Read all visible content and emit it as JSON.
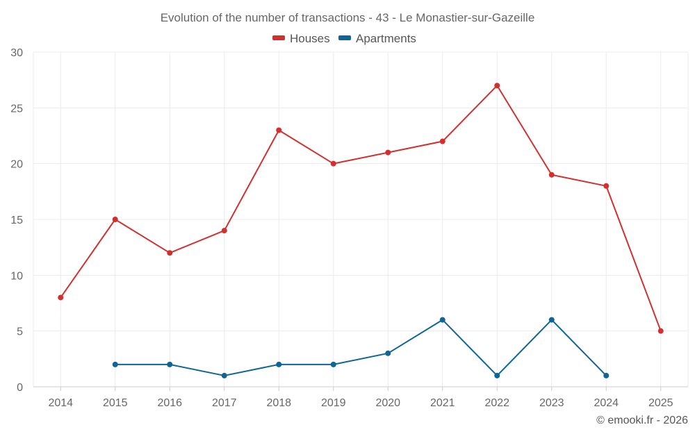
{
  "chart_data": {
    "type": "line",
    "title": "Evolution of the number of transactions - 43 - Le Monastier-sur-Gazeille",
    "categories": [
      "2014",
      "2015",
      "2016",
      "2017",
      "2018",
      "2019",
      "2020",
      "2021",
      "2022",
      "2023",
      "2024",
      "2025"
    ],
    "series": [
      {
        "name": "Houses",
        "color": "#d32f2f",
        "values": [
          8,
          15,
          12,
          14,
          23,
          20,
          21,
          22,
          27,
          19,
          18,
          5
        ]
      },
      {
        "name": "Apartments",
        "color": "#0d6696",
        "values": [
          null,
          2,
          2,
          1,
          2,
          2,
          3,
          6,
          1,
          6,
          1,
          null
        ]
      }
    ],
    "ylim": [
      0,
      30
    ],
    "yticks": [
      0,
      5,
      10,
      15,
      20,
      25,
      30
    ],
    "xlabel": "",
    "ylabel": "",
    "grid": true,
    "legend": "top-center"
  },
  "credit": "© emooki.fr - 2026"
}
